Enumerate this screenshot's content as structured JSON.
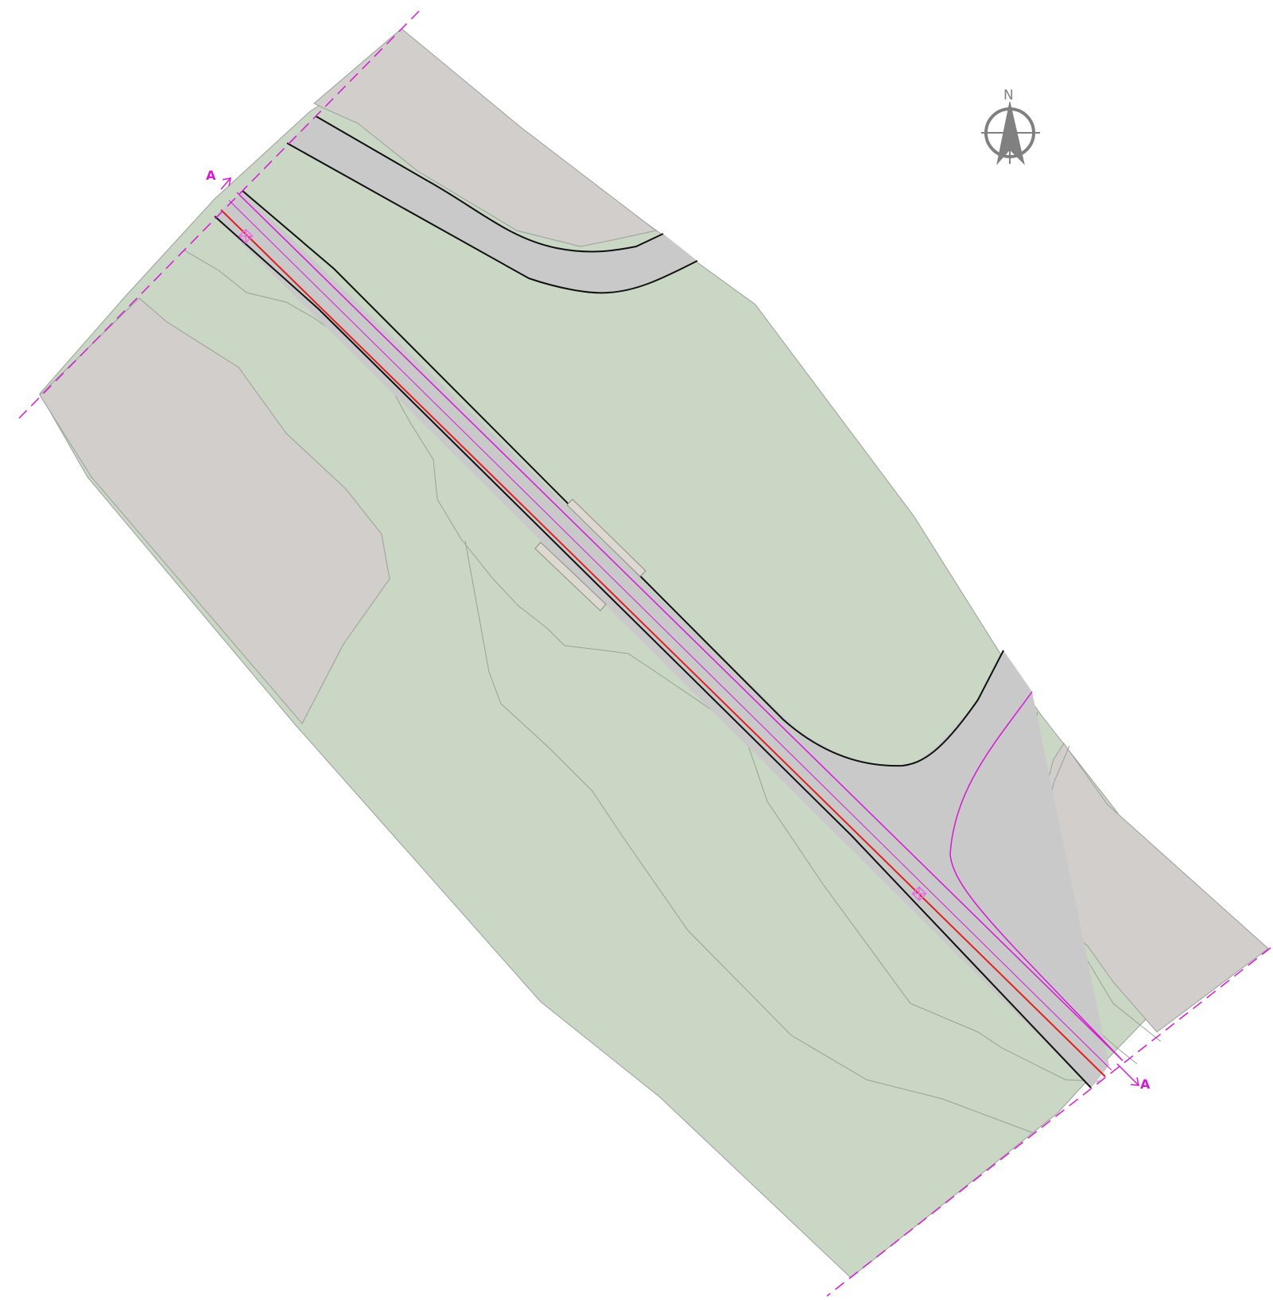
{
  "section_marker_start": "A",
  "section_marker_end": "A",
  "north_arrow": {
    "label": "N",
    "icon": "north-arrow-icon"
  },
  "colors": {
    "vegetation": "#cad7c4",
    "hatched_area": "#d1cecb",
    "road": "#c9c9c9",
    "road_edge": "#111111",
    "centerline": "#e02020",
    "section_line": "#d41ad4",
    "boundary": "#d41ad4"
  }
}
